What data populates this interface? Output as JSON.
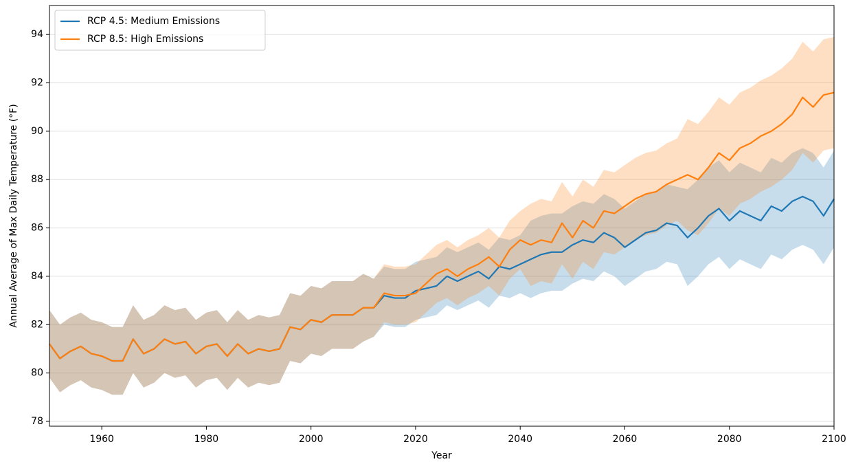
{
  "chart_data": {
    "type": "line",
    "xlabel": "Year",
    "ylabel": "Annual Average of Max Daily Temperature (°F)",
    "x": [
      1950,
      1952,
      1954,
      1956,
      1958,
      1960,
      1962,
      1964,
      1966,
      1968,
      1970,
      1972,
      1974,
      1976,
      1978,
      1980,
      1982,
      1984,
      1986,
      1988,
      1990,
      1992,
      1994,
      1996,
      1998,
      2000,
      2002,
      2004,
      2006,
      2008,
      2010,
      2012,
      2014,
      2016,
      2018,
      2020,
      2022,
      2024,
      2026,
      2028,
      2030,
      2032,
      2034,
      2036,
      2038,
      2040,
      2042,
      2044,
      2046,
      2048,
      2050,
      2052,
      2054,
      2056,
      2058,
      2060,
      2062,
      2064,
      2066,
      2068,
      2070,
      2072,
      2074,
      2076,
      2078,
      2080,
      2082,
      2084,
      2086,
      2088,
      2090,
      2092,
      2094,
      2096,
      2098,
      2100
    ],
    "series": [
      {
        "name": "RCP 4.5: Medium Emissions",
        "color": "#1f77b4",
        "values": [
          81.2,
          80.6,
          80.9,
          81.1,
          80.8,
          80.7,
          80.5,
          80.5,
          81.4,
          80.8,
          81.0,
          81.4,
          81.2,
          81.3,
          80.8,
          81.1,
          81.2,
          80.7,
          81.2,
          80.8,
          81.0,
          80.9,
          81.0,
          81.9,
          81.8,
          82.2,
          82.1,
          82.4,
          82.4,
          82.4,
          82.7,
          82.7,
          83.2,
          83.1,
          83.1,
          83.4,
          83.5,
          83.6,
          84.0,
          83.8,
          84.0,
          84.2,
          83.9,
          84.4,
          84.3,
          84.5,
          84.7,
          84.9,
          85.0,
          85.0,
          85.3,
          85.5,
          85.4,
          85.8,
          85.6,
          85.2,
          85.5,
          85.8,
          85.9,
          86.2,
          86.1,
          85.6,
          86.0,
          86.5,
          86.8,
          86.3,
          86.7,
          86.5,
          86.3,
          86.9,
          86.7,
          87.1,
          87.3,
          87.1,
          86.5,
          87.2
        ],
        "lower": [
          79.8,
          79.2,
          79.5,
          79.7,
          79.4,
          79.3,
          79.1,
          79.1,
          80.0,
          79.4,
          79.6,
          80.0,
          79.8,
          79.9,
          79.4,
          79.7,
          79.8,
          79.3,
          79.8,
          79.4,
          79.6,
          79.5,
          79.6,
          80.5,
          80.4,
          80.8,
          80.7,
          81.0,
          81.0,
          81.0,
          81.3,
          81.5,
          82.0,
          81.9,
          81.9,
          82.2,
          82.3,
          82.4,
          82.8,
          82.6,
          82.8,
          83.0,
          82.7,
          83.2,
          83.1,
          83.3,
          83.1,
          83.3,
          83.4,
          83.4,
          83.7,
          83.9,
          83.8,
          84.2,
          84.0,
          83.6,
          83.9,
          84.2,
          84.3,
          84.6,
          84.5,
          83.6,
          84.0,
          84.5,
          84.8,
          84.3,
          84.7,
          84.5,
          84.3,
          84.9,
          84.7,
          85.1,
          85.3,
          85.1,
          84.5,
          85.2
        ],
        "upper": [
          82.6,
          82.0,
          82.3,
          82.5,
          82.2,
          82.1,
          81.9,
          81.9,
          82.8,
          82.2,
          82.4,
          82.8,
          82.6,
          82.7,
          82.2,
          82.5,
          82.6,
          82.1,
          82.6,
          82.2,
          82.4,
          82.3,
          82.4,
          83.3,
          83.2,
          83.6,
          83.5,
          83.8,
          83.8,
          83.8,
          84.1,
          83.9,
          84.4,
          84.3,
          84.3,
          84.6,
          84.7,
          84.8,
          85.2,
          85.0,
          85.2,
          85.4,
          85.1,
          85.6,
          85.5,
          85.7,
          86.3,
          86.5,
          86.6,
          86.6,
          86.9,
          87.1,
          87.0,
          87.4,
          87.2,
          86.8,
          87.1,
          87.4,
          87.5,
          87.8,
          87.7,
          87.6,
          88.0,
          88.5,
          88.8,
          88.3,
          88.7,
          88.5,
          88.3,
          88.9,
          88.7,
          89.1,
          89.3,
          89.1,
          88.5,
          89.2
        ]
      },
      {
        "name": "RCP 8.5: High Emissions",
        "color": "#ff7f0e",
        "values": [
          81.2,
          80.6,
          80.9,
          81.1,
          80.8,
          80.7,
          80.5,
          80.5,
          81.4,
          80.8,
          81.0,
          81.4,
          81.2,
          81.3,
          80.8,
          81.1,
          81.2,
          80.7,
          81.2,
          80.8,
          81.0,
          80.9,
          81.0,
          81.9,
          81.8,
          82.2,
          82.1,
          82.4,
          82.4,
          82.4,
          82.7,
          82.7,
          83.3,
          83.2,
          83.2,
          83.3,
          83.7,
          84.1,
          84.3,
          84.0,
          84.3,
          84.5,
          84.8,
          84.4,
          85.1,
          85.5,
          85.3,
          85.5,
          85.4,
          86.2,
          85.6,
          86.3,
          86.0,
          86.7,
          86.6,
          86.9,
          87.2,
          87.4,
          87.5,
          87.8,
          88.0,
          88.2,
          88.0,
          88.5,
          89.1,
          88.8,
          89.3,
          89.5,
          89.8,
          90.0,
          90.3,
          90.7,
          91.4,
          91.0,
          91.5,
          91.6
        ],
        "lower": [
          79.8,
          79.2,
          79.5,
          79.7,
          79.4,
          79.3,
          79.1,
          79.1,
          80.0,
          79.4,
          79.6,
          80.0,
          79.8,
          79.9,
          79.4,
          79.7,
          79.8,
          79.3,
          79.8,
          79.4,
          79.6,
          79.5,
          79.6,
          80.5,
          80.4,
          80.8,
          80.7,
          81.0,
          81.0,
          81.0,
          81.3,
          81.5,
          82.1,
          82.0,
          82.0,
          82.1,
          82.5,
          82.9,
          83.1,
          82.8,
          83.1,
          83.3,
          83.6,
          83.2,
          83.9,
          84.3,
          83.6,
          83.8,
          83.7,
          84.5,
          83.9,
          84.6,
          84.3,
          85.0,
          84.9,
          85.2,
          85.5,
          85.7,
          85.8,
          86.1,
          86.3,
          85.9,
          85.7,
          86.2,
          86.8,
          86.5,
          87.0,
          87.2,
          87.5,
          87.7,
          88.0,
          88.4,
          89.1,
          88.7,
          89.2,
          89.3
        ],
        "upper": [
          82.6,
          82.0,
          82.3,
          82.5,
          82.2,
          82.1,
          81.9,
          81.9,
          82.8,
          82.2,
          82.4,
          82.8,
          82.6,
          82.7,
          82.2,
          82.5,
          82.6,
          82.1,
          82.6,
          82.2,
          82.4,
          82.3,
          82.4,
          83.3,
          83.2,
          83.6,
          83.5,
          83.8,
          83.8,
          83.8,
          84.1,
          83.9,
          84.5,
          84.4,
          84.4,
          84.5,
          84.9,
          85.3,
          85.5,
          85.2,
          85.5,
          85.7,
          86.0,
          85.6,
          86.3,
          86.7,
          87.0,
          87.2,
          87.1,
          87.9,
          87.3,
          88.0,
          87.7,
          88.4,
          88.3,
          88.6,
          88.9,
          89.1,
          89.2,
          89.5,
          89.7,
          90.5,
          90.3,
          90.8,
          91.4,
          91.1,
          91.6,
          91.8,
          92.1,
          92.3,
          92.6,
          93.0,
          93.7,
          93.3,
          93.8,
          93.9
        ]
      }
    ],
    "xlim": [
      1950,
      2100
    ],
    "xticks": [
      1960,
      1980,
      2000,
      2020,
      2040,
      2060,
      2080,
      2100
    ],
    "ylim": [
      77.8,
      95.2
    ],
    "yticks": [
      78,
      80,
      82,
      84,
      86,
      88,
      90,
      92,
      94
    ],
    "grid": true,
    "legend": "upper left"
  }
}
